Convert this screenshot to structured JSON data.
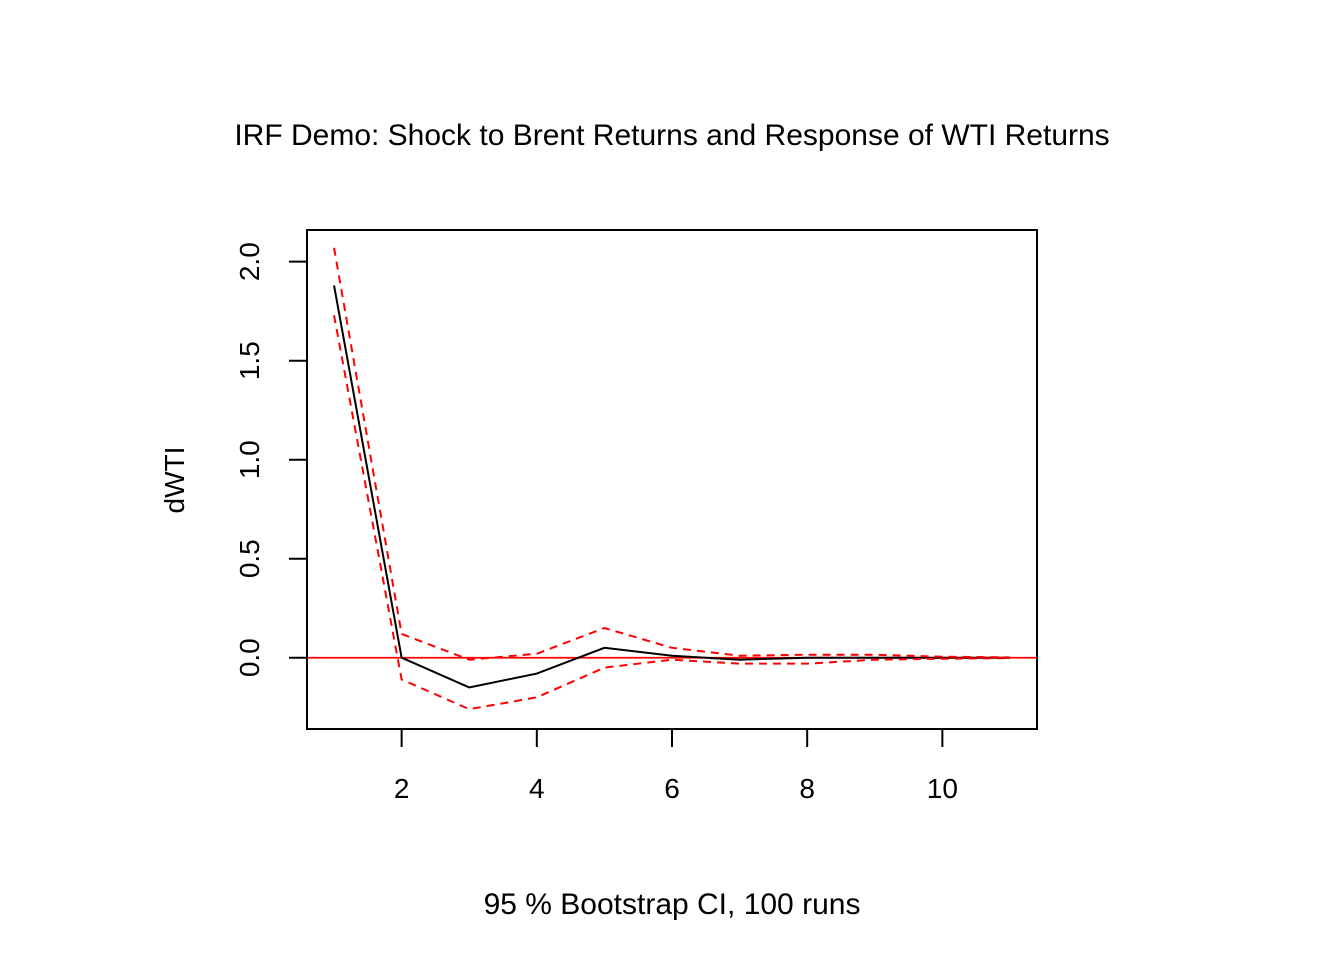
{
  "chart_data": {
    "type": "line",
    "title": "IRF Demo: Shock to Brent Returns and Response of WTI Returns",
    "xlabel": "95 % Bootstrap CI,  100 runs",
    "ylabel": "dWTI",
    "xlim": [
      0.6,
      11.4
    ],
    "ylim": [
      -0.36,
      2.16
    ],
    "x_ticks": [
      2,
      4,
      6,
      8,
      10
    ],
    "y_ticks": [
      0.0,
      0.5,
      1.0,
      1.5,
      2.0
    ],
    "y_tick_labels": [
      "0.0",
      "0.5",
      "1.0",
      "1.5",
      "2.0"
    ],
    "x": [
      1,
      2,
      3,
      4,
      5,
      6,
      7,
      8,
      9,
      10,
      11
    ],
    "series": [
      {
        "role": "response",
        "color": "#000000",
        "dash": "solid",
        "values": [
          1.88,
          0.0,
          -0.15,
          -0.08,
          0.05,
          0.01,
          -0.01,
          0.0,
          0.0,
          0.0,
          0.0
        ]
      },
      {
        "role": "upper-ci",
        "color": "#ff0000",
        "dash": "dashed",
        "values": [
          2.07,
          0.12,
          -0.01,
          0.02,
          0.15,
          0.05,
          0.01,
          0.015,
          0.015,
          0.005,
          0.002
        ]
      },
      {
        "role": "lower-ci",
        "color": "#ff0000",
        "dash": "dashed",
        "values": [
          1.73,
          -0.11,
          -0.26,
          -0.2,
          -0.05,
          -0.01,
          -0.03,
          -0.03,
          -0.01,
          -0.005,
          -0.002
        ]
      }
    ],
    "hline": {
      "y": 0,
      "color": "#ff0000"
    },
    "grid": false,
    "legend": "none"
  }
}
